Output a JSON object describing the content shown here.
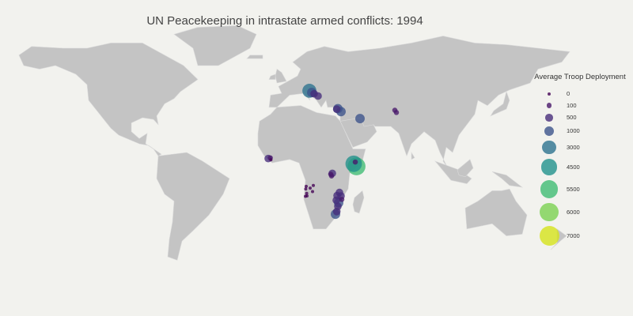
{
  "title": "UN Peacekeeping in intrastate armed conflicts: 1994",
  "legend": {
    "title": "Average Troop Deployment",
    "items": [
      {
        "label": "0",
        "value": 0,
        "color": "#440154"
      },
      {
        "label": "100",
        "value": 100,
        "color": "#48186a"
      },
      {
        "label": "500",
        "value": 500,
        "color": "#472d7b"
      },
      {
        "label": "1000",
        "value": 1000,
        "color": "#3b528b"
      },
      {
        "label": "3000",
        "value": 3000,
        "color": "#2c728e"
      },
      {
        "label": "4500",
        "value": 4500,
        "color": "#21918c"
      },
      {
        "label": "5500",
        "value": 5500,
        "color": "#3fbc73"
      },
      {
        "label": "6000",
        "value": 6000,
        "color": "#7ad151"
      },
      {
        "label": "7000",
        "value": 7000,
        "color": "#d5e21a"
      }
    ]
  },
  "colors": {
    "land": "#c4c4c4",
    "ocean": "#f2f2ee",
    "borders": "#dadada"
  },
  "points": [
    {
      "lon": 15.5,
      "lat": 45.5,
      "troops": 3000
    },
    {
      "lon": 17.0,
      "lat": 44.5,
      "troops": 1000
    },
    {
      "lon": 18.5,
      "lat": 43.8,
      "troops": 500
    },
    {
      "lon": 21.0,
      "lat": 42.5,
      "troops": 500
    },
    {
      "lon": 33.5,
      "lat": 35.2,
      "troops": 1000
    },
    {
      "lon": 35.5,
      "lat": 33.5,
      "troops": 1000
    },
    {
      "lon": 32.8,
      "lat": 34.9,
      "troops": 500
    },
    {
      "lon": 47.5,
      "lat": 29.5,
      "troops": 1000
    },
    {
      "lon": 69.5,
      "lat": 34.3,
      "troops": 100
    },
    {
      "lon": 70.5,
      "lat": 33.0,
      "troops": 100
    },
    {
      "lon": -10.5,
      "lat": 6.5,
      "troops": 500
    },
    {
      "lon": -9.2,
      "lat": 6.9,
      "troops": 100
    },
    {
      "lon": -8.8,
      "lat": 5.8,
      "troops": 0
    },
    {
      "lon": 45.3,
      "lat": 2.0,
      "troops": 5500
    },
    {
      "lon": 43.5,
      "lat": 3.5,
      "troops": 4500
    },
    {
      "lon": 44.5,
      "lat": 4.5,
      "troops": 100
    },
    {
      "lon": 30.0,
      "lat": -2.0,
      "troops": 500
    },
    {
      "lon": 29.5,
      "lat": -3.5,
      "troops": 100
    },
    {
      "lon": 29.0,
      "lat": -2.5,
      "troops": 100
    },
    {
      "lon": 34.5,
      "lat": -13.0,
      "troops": 500
    },
    {
      "lon": 33.0,
      "lat": -14.8,
      "troops": 500
    },
    {
      "lon": 35.5,
      "lat": -15.0,
      "troops": 500
    },
    {
      "lon": 32.5,
      "lat": -17.5,
      "troops": 500
    },
    {
      "lon": 34.0,
      "lat": -19.0,
      "troops": 1000
    },
    {
      "lon": 33.5,
      "lat": -21.0,
      "troops": 500
    },
    {
      "lon": 32.8,
      "lat": -24.0,
      "troops": 500
    },
    {
      "lon": 32.0,
      "lat": -25.5,
      "troops": 1000
    },
    {
      "lon": 36.0,
      "lat": -17.0,
      "troops": 100
    },
    {
      "lon": 13.5,
      "lat": -9.5,
      "troops": 0
    },
    {
      "lon": 13.2,
      "lat": -11.0,
      "troops": 0
    },
    {
      "lon": 16.0,
      "lat": -10.5,
      "troops": 0
    },
    {
      "lon": 13.8,
      "lat": -13.5,
      "troops": 0
    },
    {
      "lon": 14.0,
      "lat": -15.0,
      "troops": 0
    },
    {
      "lon": 17.5,
      "lat": -12.5,
      "troops": 0
    },
    {
      "lon": 18.0,
      "lat": -9.0,
      "troops": 0
    },
    {
      "lon": 13.0,
      "lat": -15.2,
      "troops": 0
    }
  ]
}
